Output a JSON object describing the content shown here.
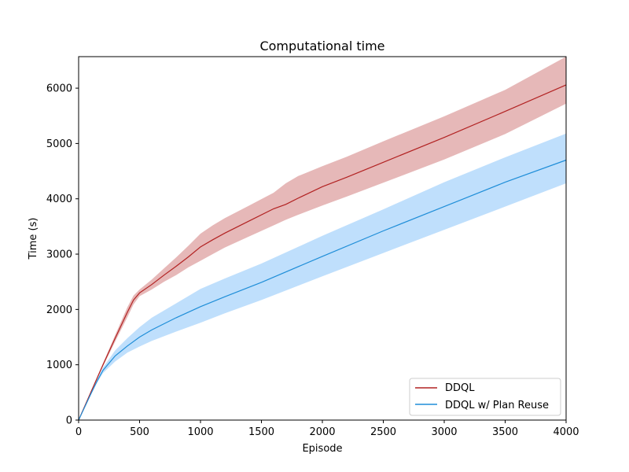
{
  "chart_data": {
    "type": "line",
    "title": "Computational time",
    "xlabel": "Episode",
    "ylabel": "Time (s)",
    "xlim": [
      0,
      4000
    ],
    "ylim": [
      0,
      6570
    ],
    "xticks": [
      0,
      500,
      1000,
      1500,
      2000,
      2500,
      3000,
      3500,
      4000
    ],
    "yticks": [
      0,
      1000,
      2000,
      3000,
      4000,
      5000,
      6000
    ],
    "grid": false,
    "legend_position": "lower-right",
    "series": [
      {
        "name": "DDQL",
        "color": "#b22222",
        "band_color": "#e6b8b8",
        "x": [
          0,
          100,
          200,
          300,
          400,
          450,
          500,
          600,
          700,
          800,
          900,
          1000,
          1100,
          1200,
          1400,
          1600,
          1700,
          1800,
          2000,
          2200,
          2500,
          3000,
          3500,
          4000
        ],
        "y": [
          0,
          500,
          1000,
          1480,
          1950,
          2170,
          2300,
          2450,
          2620,
          2780,
          2950,
          3130,
          3260,
          3380,
          3600,
          3820,
          3900,
          4010,
          4220,
          4390,
          4660,
          5110,
          5580,
          6060
        ],
        "lower": [
          0,
          490,
          970,
          1420,
          1860,
          2090,
          2240,
          2360,
          2500,
          2620,
          2760,
          2880,
          3000,
          3120,
          3320,
          3520,
          3620,
          3710,
          3880,
          4040,
          4290,
          4710,
          5170,
          5720
        ],
        "upper": [
          0,
          510,
          1030,
          1540,
          2040,
          2250,
          2360,
          2540,
          2740,
          2940,
          3150,
          3370,
          3520,
          3650,
          3880,
          4110,
          4280,
          4410,
          4590,
          4760,
          5040,
          5490,
          5970,
          6570
        ]
      },
      {
        "name": "DDQL w/ Plan Reuse",
        "color": "#1f8ed8",
        "band_color": "#bfdffc",
        "x": [
          0,
          100,
          150,
          200,
          300,
          400,
          500,
          600,
          800,
          1000,
          1200,
          1500,
          2000,
          2500,
          3000,
          3500,
          4000
        ],
        "y": [
          0,
          470,
          700,
          900,
          1160,
          1340,
          1500,
          1630,
          1850,
          2050,
          2230,
          2490,
          2960,
          3420,
          3860,
          4300,
          4700
        ],
        "lower": [
          0,
          460,
          670,
          850,
          1060,
          1220,
          1330,
          1430,
          1600,
          1760,
          1930,
          2170,
          2600,
          3020,
          3440,
          3860,
          4280
        ],
        "upper": [
          0,
          480,
          730,
          950,
          1260,
          1480,
          1680,
          1850,
          2110,
          2370,
          2560,
          2830,
          3330,
          3810,
          4300,
          4750,
          5180
        ]
      }
    ]
  }
}
